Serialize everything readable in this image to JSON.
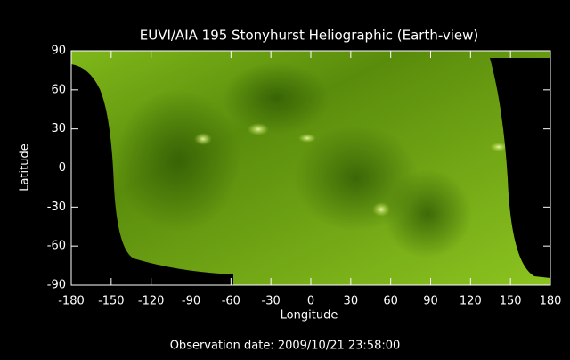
{
  "chart_data": {
    "type": "image",
    "title": "EUVI/AIA 195 Stonyhurst Heliographic (Earth-view)",
    "x_label": "Longitude",
    "y_label": "Latitude",
    "footer": "Observation date: 2009/10/21 23:58:00",
    "xlim": [
      -180,
      180
    ],
    "xticks": [
      -180,
      -150,
      -120,
      -90,
      -60,
      -30,
      0,
      30,
      60,
      90,
      120,
      150,
      180
    ],
    "ylim": [
      -90,
      90
    ],
    "yticks": [
      -90,
      -60,
      -30,
      0,
      30,
      60,
      90
    ]
  }
}
